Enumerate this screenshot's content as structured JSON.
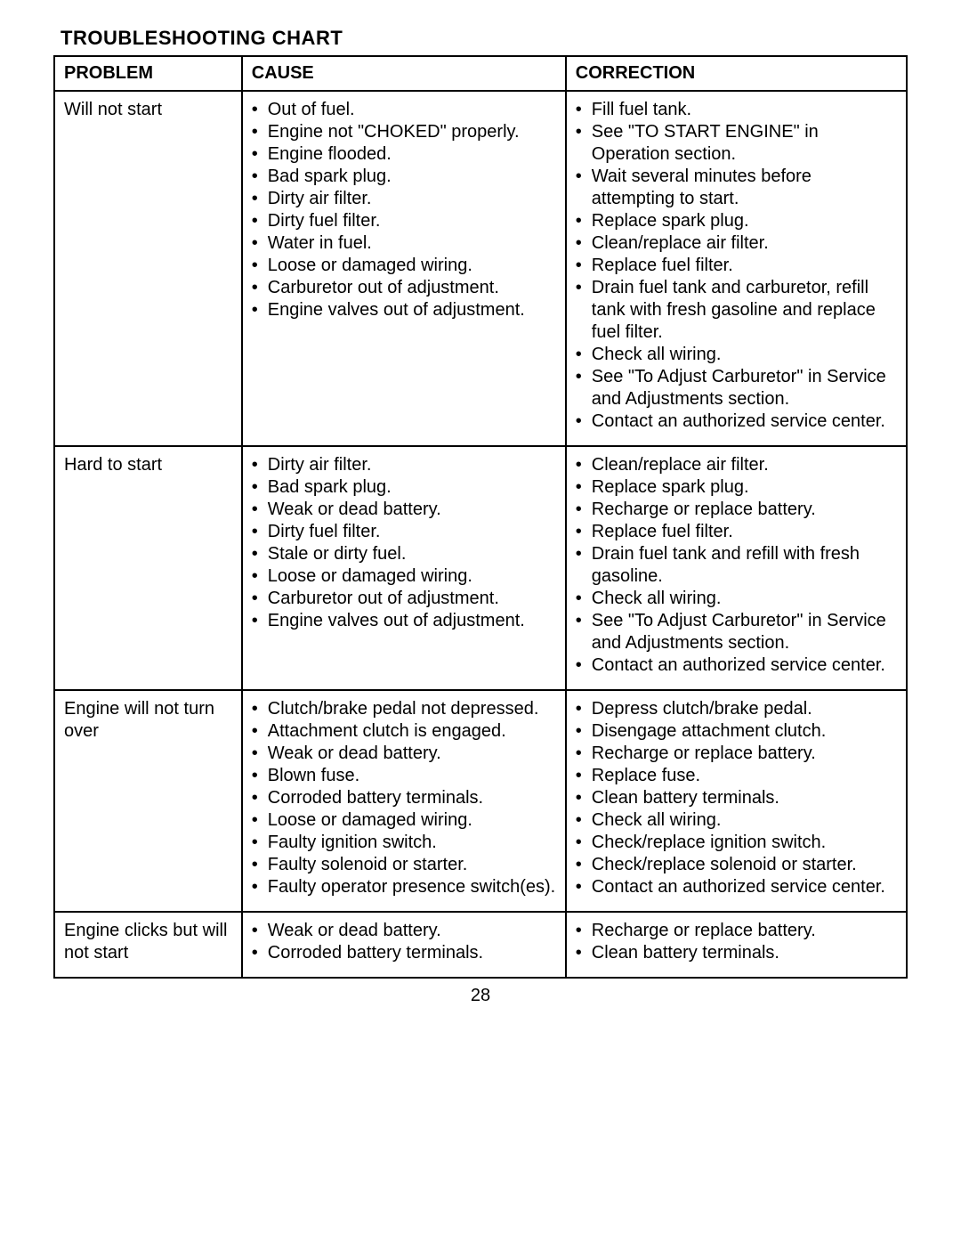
{
  "title": "TROUBLESHOOTING CHART",
  "headers": {
    "problem": "PROBLEM",
    "cause": "CAUSE",
    "correction": "CORRECTION"
  },
  "rows": [
    {
      "problem": "Will not start",
      "causes": [
        "Out of fuel.",
        "Engine not \"CHOKED\" properly.",
        "Engine flooded.",
        "Bad spark plug.",
        "Dirty air filter.",
        "Dirty fuel filter.",
        "Water in fuel.",
        "Loose or damaged wiring.",
        "Carburetor out of adjustment.",
        "Engine valves out of adjustment."
      ],
      "corrections": [
        "Fill fuel tank.",
        "See \"TO START ENGINE\" in Operation section.",
        "Wait several minutes before attempting to start.",
        "Replace spark plug.",
        "Clean/replace air filter.",
        "Replace fuel filter.",
        "Drain fuel tank and carburetor, refill tank with fresh gasoline and replace fuel filter.",
        "Check all wiring.",
        "See \"To Adjust Carburetor\" in Service and Adjustments section.",
        "Contact an authorized service center."
      ]
    },
    {
      "problem": "Hard to start",
      "causes": [
        "Dirty air filter.",
        "Bad spark plug.",
        "Weak or dead battery.",
        "Dirty fuel filter.",
        "Stale or dirty fuel.",
        "Loose or damaged wiring.",
        "Carburetor out of adjustment.",
        "Engine valves out of adjustment."
      ],
      "corrections": [
        "Clean/replace air filter.",
        "Replace spark plug.",
        "Recharge or replace battery.",
        "Replace fuel filter.",
        "Drain fuel tank and refill with fresh gasoline.",
        "Check all wiring.",
        "See \"To Adjust Carburetor\" in Service and Adjustments section.",
        "Contact an authorized service center."
      ]
    },
    {
      "problem": "Engine will not turn over",
      "causes": [
        "Clutch/brake pedal not depressed.",
        "Attachment clutch is engaged.",
        "Weak or dead battery.",
        "Blown fuse.",
        "Corroded battery terminals.",
        "Loose or damaged wiring.",
        "Faulty ignition switch.",
        "Faulty solenoid or starter.",
        "Faulty operator presence switch(es)."
      ],
      "corrections": [
        "Depress clutch/brake pedal.",
        "Disengage attachment clutch.",
        "Recharge or replace battery.",
        "Replace fuse.",
        "Clean battery terminals.",
        "Check all wiring.",
        "Check/replace ignition switch.",
        "Check/replace solenoid or starter.",
        "Contact an authorized service center."
      ]
    },
    {
      "problem": "Engine clicks but will not start",
      "causes": [
        "Weak or dead battery.",
        "Corroded battery terminals."
      ],
      "corrections": [
        "Recharge or replace battery.",
        "Clean battery terminals."
      ]
    }
  ],
  "page_number": "28"
}
